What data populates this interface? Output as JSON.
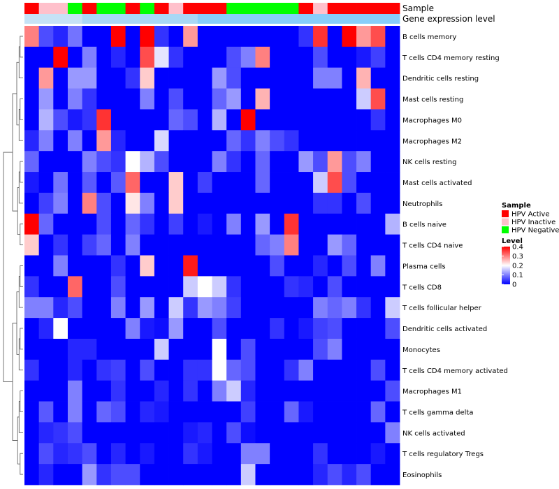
{
  "chart_data": {
    "type": "heatmap",
    "annotation_labels": [
      "Sample",
      "Gene expression level"
    ],
    "sample_groups": [
      "Active",
      "Inactive",
      "Inactive",
      "Negative",
      "Active",
      "Negative",
      "Negative",
      "Active",
      "Negative",
      "Active",
      "Inactive",
      "Active",
      "Active",
      "Active",
      "Negative",
      "Negative",
      "Negative",
      "Negative",
      "Negative",
      "Active",
      "Inactive",
      "Active",
      "Active",
      "Active",
      "Active",
      "Active"
    ],
    "gene_expression_colors": [
      "#87CEFA",
      "#87CEFA",
      "#87CEFA",
      "#87CEFA",
      "#87CEFA",
      "#87CEFA",
      "#87CEFA",
      "#87CEFA",
      "#87CEFA",
      "#87CEFA",
      "#87CEFA",
      "#87CEFA",
      "#87CEFA",
      "#87CEFA",
      "#87CEFA",
      "#87CEFA",
      "#87CEFA",
      "#87CEFA",
      "#87CEFA",
      "#87CEFA",
      "#87CEFA",
      "#87CEFA",
      "#87CEFA",
      "#87CEFA",
      "#87CEFA",
      "#87CEFA"
    ],
    "rows": [
      "B cells memory",
      "T cells CD4 memory resting",
      "Dendritic cells resting",
      "Mast cells resting",
      "Macrophages M0",
      "Macrophages M2",
      "NK cells resting",
      "Mast cells activated",
      "Neutrophils",
      "B cells naive",
      "T cells CD4 naive",
      "Plasma cells",
      "T cells CD8",
      "T cells follicular helper",
      "Dendritic cells activated",
      "Monocytes",
      "T cells CD4 memory activated",
      "Macrophages M1",
      "T cells gamma delta",
      "NK cells activated",
      "T cells regulatory  Tregs",
      "Eosinophils"
    ],
    "values": [
      [
        0.3,
        0.06,
        0.03,
        0.09,
        0.0,
        0.0,
        0.4,
        0.0,
        0.4,
        0.04,
        0.0,
        0.28,
        0.0,
        0.0,
        0.0,
        0.0,
        0.0,
        0.0,
        0.0,
        0.04,
        0.36,
        0.0,
        0.4,
        0.28,
        0.34,
        0.0
      ],
      [
        0.0,
        0.0,
        0.4,
        0.0,
        0.1,
        0.0,
        0.03,
        0.0,
        0.34,
        0.18,
        0.04,
        0.0,
        0.0,
        0.0,
        0.06,
        0.1,
        0.3,
        0.0,
        0.0,
        0.0,
        0.06,
        0.0,
        0.0,
        0.02,
        0.05,
        0.0
      ],
      [
        0.0,
        0.28,
        0.0,
        0.12,
        0.12,
        0.0,
        0.0,
        0.04,
        0.24,
        0.0,
        0.0,
        0.0,
        0.0,
        0.12,
        0.06,
        0.0,
        0.0,
        0.0,
        0.0,
        0.0,
        0.1,
        0.1,
        0.0,
        0.26,
        0.0,
        0.0
      ],
      [
        0.0,
        0.12,
        0.0,
        0.1,
        0.04,
        0.0,
        0.0,
        0.0,
        0.1,
        0.0,
        0.06,
        0.0,
        0.0,
        0.08,
        0.12,
        0.0,
        0.26,
        0.0,
        0.0,
        0.0,
        0.0,
        0.0,
        0.0,
        0.16,
        0.34,
        0.0
      ],
      [
        0.0,
        0.14,
        0.06,
        0.02,
        0.04,
        0.36,
        0.0,
        0.0,
        0.0,
        0.0,
        0.08,
        0.06,
        0.0,
        0.14,
        0.0,
        0.4,
        0.0,
        0.0,
        0.0,
        0.0,
        0.0,
        0.0,
        0.0,
        0.0,
        0.04,
        0.0
      ],
      [
        0.03,
        0.1,
        0.0,
        0.1,
        0.0,
        0.28,
        0.03,
        0.0,
        0.0,
        0.17,
        0.0,
        0.0,
        0.0,
        0.0,
        0.08,
        0.04,
        0.1,
        0.06,
        0.04,
        0.0,
        0.0,
        0.0,
        0.0,
        0.0,
        0.0,
        0.0
      ],
      [
        0.08,
        0.0,
        0.0,
        0.0,
        0.1,
        0.06,
        0.04,
        0.2,
        0.14,
        0.06,
        0.0,
        0.0,
        0.0,
        0.1,
        0.04,
        0.0,
        0.08,
        0.0,
        0.0,
        0.12,
        0.06,
        0.28,
        0.06,
        0.1,
        0.0,
        0.0
      ],
      [
        0.02,
        0.0,
        0.09,
        0.0,
        0.07,
        0.0,
        0.07,
        0.32,
        0.0,
        0.0,
        0.24,
        0.0,
        0.05,
        0.0,
        0.0,
        0.0,
        0.08,
        0.0,
        0.0,
        0.0,
        0.16,
        0.34,
        0.06,
        0.0,
        0.0,
        0.0
      ],
      [
        0.0,
        0.05,
        0.1,
        0.0,
        0.3,
        0.06,
        0.0,
        0.22,
        0.1,
        0.0,
        0.24,
        0.0,
        0.0,
        0.0,
        0.0,
        0.0,
        0.0,
        0.0,
        0.0,
        0.0,
        0.04,
        0.04,
        0.0,
        0.06,
        0.0,
        0.0
      ],
      [
        0.4,
        0.08,
        0.0,
        0.0,
        0.0,
        0.06,
        0.0,
        0.08,
        0.04,
        0.0,
        0.05,
        0.0,
        0.02,
        0.0,
        0.1,
        0.0,
        0.12,
        0.0,
        0.36,
        0.0,
        0.0,
        0.0,
        0.0,
        0.0,
        0.0,
        0.14
      ],
      [
        0.24,
        0.0,
        0.04,
        0.0,
        0.05,
        0.08,
        0.0,
        0.1,
        0.0,
        0.0,
        0.0,
        0.0,
        0.0,
        0.0,
        0.0,
        0.0,
        0.08,
        0.1,
        0.3,
        0.0,
        0.0,
        0.12,
        0.08,
        0.0,
        0.0,
        0.0
      ],
      [
        0.0,
        0.0,
        0.1,
        0.0,
        0.0,
        0.0,
        0.04,
        0.0,
        0.24,
        0.0,
        0.0,
        0.38,
        0.0,
        0.0,
        0.0,
        0.0,
        0.0,
        0.06,
        0.0,
        0.0,
        0.03,
        0.0,
        0.06,
        0.0,
        0.1,
        0.0
      ],
      [
        0.04,
        0.0,
        0.0,
        0.32,
        0.0,
        0.0,
        0.06,
        0.0,
        0.0,
        0.0,
        0.0,
        0.16,
        0.2,
        0.16,
        0.04,
        0.0,
        0.0,
        0.0,
        0.04,
        0.03,
        0.0,
        0.06,
        0.0,
        0.0,
        0.0,
        0.0
      ],
      [
        0.1,
        0.1,
        0.03,
        0.06,
        0.0,
        0.0,
        0.1,
        0.0,
        0.12,
        0.0,
        0.16,
        0.04,
        0.12,
        0.1,
        0.05,
        0.0,
        0.0,
        0.0,
        0.0,
        0.0,
        0.1,
        0.08,
        0.1,
        0.04,
        0.0,
        0.16
      ],
      [
        0.0,
        0.03,
        0.2,
        0.0,
        0.0,
        0.0,
        0.0,
        0.1,
        0.02,
        0.01,
        0.12,
        0.0,
        0.0,
        0.06,
        0.0,
        0.0,
        0.0,
        0.04,
        0.0,
        0.02,
        0.05,
        0.06,
        0.0,
        0.0,
        0.0,
        0.06
      ],
      [
        0.0,
        0.0,
        0.0,
        0.03,
        0.03,
        0.0,
        0.0,
        0.0,
        0.0,
        0.16,
        0.0,
        0.0,
        0.0,
        0.2,
        0.0,
        0.06,
        0.0,
        0.0,
        0.0,
        0.0,
        0.06,
        0.1,
        0.0,
        0.0,
        0.0,
        0.0
      ],
      [
        0.04,
        0.0,
        0.0,
        0.03,
        0.0,
        0.04,
        0.05,
        0.0,
        0.06,
        0.0,
        0.0,
        0.04,
        0.04,
        0.2,
        0.08,
        0.06,
        0.0,
        0.0,
        0.04,
        0.1,
        0.0,
        0.0,
        0.0,
        0.0,
        0.06,
        0.0
      ],
      [
        0.0,
        0.0,
        0.0,
        0.1,
        0.0,
        0.0,
        0.04,
        0.0,
        0.0,
        0.03,
        0.0,
        0.04,
        0.0,
        0.1,
        0.16,
        0.03,
        0.0,
        0.0,
        0.0,
        0.0,
        0.0,
        0.0,
        0.0,
        0.0,
        0.0,
        0.06
      ],
      [
        0.0,
        0.07,
        0.0,
        0.1,
        0.0,
        0.08,
        0.06,
        0.0,
        0.03,
        0.02,
        0.0,
        0.0,
        0.0,
        0.0,
        0.0,
        0.05,
        0.0,
        0.0,
        0.08,
        0.02,
        0.0,
        0.0,
        0.0,
        0.0,
        0.08,
        0.0
      ],
      [
        0.0,
        0.03,
        0.04,
        0.06,
        0.0,
        0.0,
        0.0,
        0.0,
        0.0,
        0.0,
        0.0,
        0.02,
        0.03,
        0.0,
        0.06,
        0.01,
        0.0,
        0.0,
        0.0,
        0.0,
        0.0,
        0.0,
        0.0,
        0.0,
        0.0,
        0.1
      ],
      [
        0.0,
        0.06,
        0.03,
        0.04,
        0.06,
        0.0,
        0.03,
        0.0,
        0.02,
        0.0,
        0.0,
        0.04,
        0.02,
        0.0,
        0.0,
        0.1,
        0.1,
        0.0,
        0.0,
        0.0,
        0.04,
        0.0,
        0.0,
        0.0,
        0.02,
        0.0
      ],
      [
        0.0,
        0.03,
        0.0,
        0.0,
        0.12,
        0.04,
        0.06,
        0.06,
        0.0,
        0.0,
        0.0,
        0.0,
        0.0,
        0.0,
        0.0,
        0.16,
        0.0,
        0.0,
        0.0,
        0.0,
        0.03,
        0.06,
        0.03,
        0.06,
        0.0,
        0.0
      ]
    ],
    "color_scale": {
      "min": 0,
      "max": 0.4,
      "colors": [
        "#0000FF",
        "#FFFFFF",
        "#FF0000"
      ]
    },
    "legend_sample": {
      "title": "Sample",
      "entries": [
        {
          "key": "Active",
          "label": "HPV Active",
          "color": "#FF0000"
        },
        {
          "key": "Inactive",
          "label": "HPV Inactive",
          "color": "#FFC0CB"
        },
        {
          "key": "Negative",
          "label": "HPV Negative",
          "color": "#00FF00"
        }
      ]
    },
    "legend_level": {
      "title": "Level",
      "ticks": [
        {
          "value": 0.4,
          "label": "0.4"
        },
        {
          "value": 0.3,
          "label": "0.3"
        },
        {
          "value": 0.2,
          "label": "0.2"
        },
        {
          "value": 0.1,
          "label": "0.1"
        },
        {
          "value": 0,
          "label": "0"
        }
      ]
    },
    "row_dendrogram": [
      [
        1,
        2
      ],
      [
        3,
        4
      ],
      [
        0,
        -1
      ],
      [
        -2,
        -3
      ],
      [
        5,
        -4
      ],
      [
        -5,
        6
      ],
      [
        7,
        8
      ],
      [
        10,
        11
      ],
      [
        12,
        13
      ],
      [
        14,
        15
      ],
      [
        16,
        17
      ],
      [
        18,
        19
      ],
      [
        20,
        21
      ],
      [
        -6,
        -7
      ],
      [
        -8,
        -9
      ],
      [
        -14,
        -15
      ],
      [
        -16,
        -13
      ],
      [
        -10,
        -11
      ],
      [
        -12,
        -18
      ],
      [
        -17,
        -19
      ],
      [
        9,
        -20
      ],
      [
        -21,
        -22
      ],
      [
        -23,
        -24
      ],
      [
        -25,
        -26
      ],
      [
        -27,
        -28
      ],
      [
        -29,
        -30
      ],
      [
        -31,
        -32
      ],
      [
        -33,
        -34
      ],
      [
        -35,
        -36
      ],
      [
        -37,
        -38
      ],
      [
        -39,
        -40
      ],
      [
        -41,
        -42
      ]
    ]
  }
}
